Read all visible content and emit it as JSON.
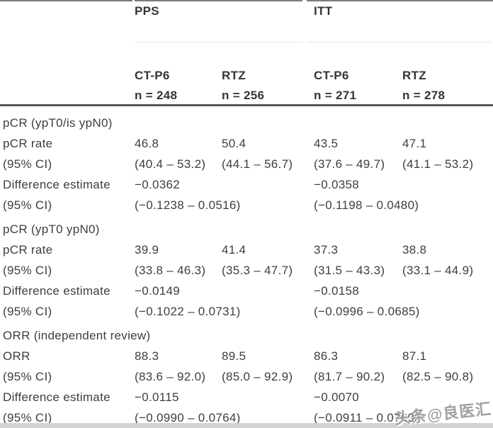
{
  "table": {
    "groups": [
      {
        "label": "PPS"
      },
      {
        "label": "ITT"
      }
    ],
    "columns": [
      {
        "group": "PPS",
        "drug": "CT-P6",
        "n_label": "n = 248"
      },
      {
        "group": "PPS",
        "drug": "RTZ",
        "n_label": "n = 256"
      },
      {
        "group": "ITT",
        "drug": "CT-P6",
        "n_label": "n = 271"
      },
      {
        "group": "ITT",
        "drug": "RTZ",
        "n_label": "n = 278"
      }
    ],
    "sections": [
      {
        "title": "pCR (ypT0/is ypN0)",
        "rows": [
          {
            "label": "pCR rate",
            "type": "per-col",
            "values": [
              "46.8",
              "50.4",
              "43.5",
              "47.1"
            ]
          },
          {
            "label": "(95% CI)",
            "type": "per-col",
            "values": [
              "(40.4 – 53.2)",
              "(44.1 – 56.7)",
              "(37.6 – 49.7)",
              "(41.1 – 53.2)"
            ]
          },
          {
            "label": "Difference estimate",
            "type": "per-group",
            "values": [
              "−0.0362",
              "−0.0358"
            ]
          },
          {
            "label": "(95% CI)",
            "type": "per-group",
            "values": [
              "(−0.1238 – 0.0516)",
              "(−0.1198 – 0.0480)"
            ]
          }
        ]
      },
      {
        "title": "pCR (ypT0 ypN0)",
        "rows": [
          {
            "label": "pCR rate",
            "type": "per-col",
            "values": [
              "39.9",
              "41.4",
              "37.3",
              "38.8"
            ]
          },
          {
            "label": "(95% CI)",
            "type": "per-col",
            "values": [
              "(33.8 – 46.3)",
              "(35.3 – 47.7)",
              "(31.5 – 43.3)",
              "(33.1 – 44.9)"
            ]
          },
          {
            "label": "Difference estimate",
            "type": "per-group",
            "values": [
              "−0.0149",
              "−0.0158"
            ]
          },
          {
            "label": "(95% CI)",
            "type": "per-group",
            "values": [
              "(−0.1022 – 0.0731)",
              "(−0.0996 – 0.0685)"
            ]
          }
        ]
      },
      {
        "title": "ORR (independent review)",
        "rows": [
          {
            "label": "ORR",
            "type": "per-col",
            "values": [
              "88.3",
              "89.5",
              "86.3",
              "87.1"
            ]
          },
          {
            "label": "(95% CI)",
            "type": "per-col",
            "values": [
              "(83.6 – 92.0)",
              "(85.0 – 92.9)",
              "(81.7 – 90.2)",
              "(82.5 – 90.8)"
            ]
          },
          {
            "label": "Difference estimate",
            "type": "per-group",
            "values": [
              "−0.0115",
              "−0.0070"
            ]
          },
          {
            "label": "(95% CI)",
            "type": "per-group",
            "values": [
              "(−0.0990 – 0.0764)",
              "(−0.0911 – 0.0769)"
            ]
          }
        ]
      }
    ]
  },
  "watermark": {
    "text": "头条@良医汇"
  },
  "colors": {
    "text": "#3e3e3e",
    "header_text": "#353535",
    "top_rule": "#7c7c7c",
    "thin_rule": "#e4e4e4",
    "mid_rule": "#565656",
    "bottom_strip": "#d3d3d3",
    "watermark_gray": "#919191",
    "background": "#ffffff"
  }
}
